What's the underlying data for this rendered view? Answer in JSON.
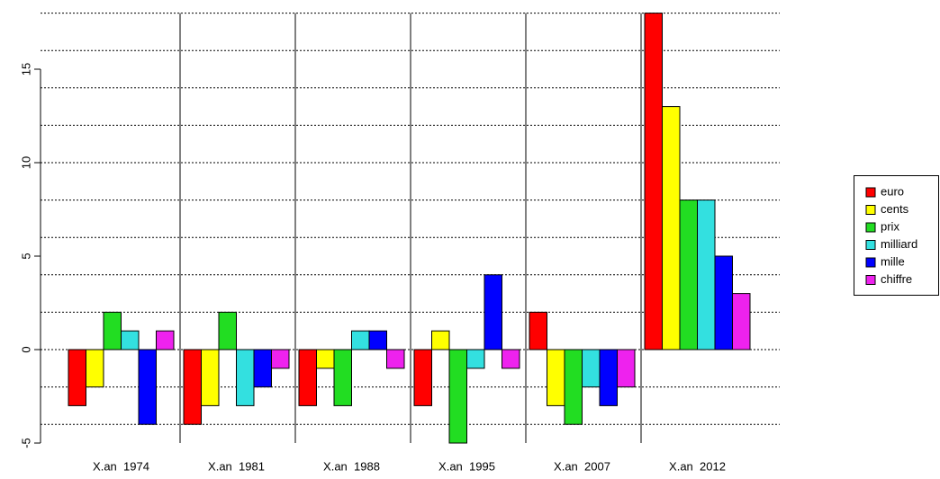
{
  "chart_data": {
    "type": "bar",
    "categories": [
      "X.an  1974",
      "X.an  1981",
      "X.an  1988",
      "X.an  1995",
      "X.an  2007",
      "X.an  2012"
    ],
    "series": [
      {
        "name": "euro",
        "color": "#ff0000",
        "values": [
          -3,
          -4,
          -3,
          -3,
          2,
          18
        ]
      },
      {
        "name": "cents",
        "color": "#ffff00",
        "values": [
          -2,
          -3,
          -1,
          1,
          -3,
          13
        ]
      },
      {
        "name": "prix",
        "color": "#22dd22",
        "values": [
          2,
          2,
          -3,
          -5,
          -4,
          8
        ]
      },
      {
        "name": "milliard",
        "color": "#33e0e0",
        "values": [
          1,
          -3,
          1,
          -1,
          -2,
          8
        ]
      },
      {
        "name": "mille",
        "color": "#0000ff",
        "values": [
          -4,
          -2,
          1,
          4,
          -3,
          5
        ]
      },
      {
        "name": "chiffre",
        "color": "#ee22ee",
        "values": [
          1,
          -1,
          -1,
          -1,
          -2,
          3
        ]
      }
    ],
    "ylim": [
      -5,
      18
    ],
    "yticks": [
      -5,
      0,
      5,
      10,
      15
    ],
    "grid": true,
    "gridlines": [
      -4,
      -2,
      0,
      2,
      4,
      6,
      8,
      10,
      12,
      14,
      16,
      18
    ],
    "legend": "right"
  }
}
